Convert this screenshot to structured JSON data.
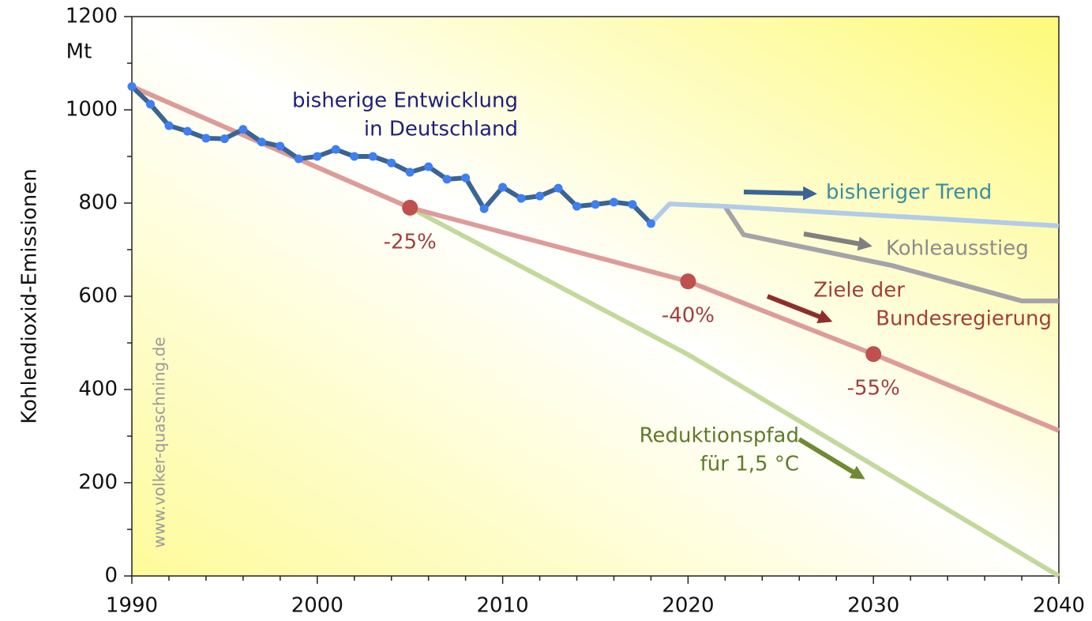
{
  "chart_data": {
    "type": "line",
    "ylabel": "Kohlendioxid-Emissionen",
    "yunit": "Mt",
    "watermark": "www.volker-quaschning.de",
    "xlim": [
      1990,
      2040
    ],
    "xticks": [
      1990,
      2000,
      2010,
      2020,
      2030,
      2040
    ],
    "xminorticks": [
      1992,
      1994,
      1996,
      1998,
      2002,
      2004,
      2006,
      2008,
      2012,
      2014,
      2016,
      2018,
      2022,
      2024,
      2026,
      2028,
      2032,
      2034,
      2036,
      2038
    ],
    "ylim": [
      0,
      1200
    ],
    "yticks": [
      0,
      200,
      400,
      600,
      800,
      1000,
      1200
    ],
    "yminorticks": [
      100,
      300,
      500,
      700,
      900,
      1100
    ],
    "series": [
      {
        "name": "Reduktionspfad für 1,5 °C",
        "color": "#c3d99b",
        "x": [
          1990,
          2005,
          2020,
          2040
        ],
        "values": [
          1050,
          790,
          475,
          0
        ]
      },
      {
        "name": "Ziele der Bundesregierung",
        "color": "#dc9c9a",
        "x": [
          1990,
          2005,
          2020,
          2030,
          2040
        ],
        "values": [
          1050,
          790,
          632,
          476,
          312
        ]
      },
      {
        "name": "Kohleausstieg",
        "color": "#a3a3a8",
        "x": [
          2022,
          2023,
          2031,
          2038,
          2040
        ],
        "values": [
          792,
          732,
          666,
          590,
          590
        ]
      },
      {
        "name": "bisheriger Trend",
        "color": "#b2cbe8",
        "x": [
          2018,
          2019,
          2022,
          2040
        ],
        "values": [
          756,
          798,
          793,
          751
        ]
      },
      {
        "name": "bisherige Entwicklung in Deutschland",
        "color": "#3a6494",
        "marker_color": "#3f7ff0",
        "x": [
          1990,
          1991,
          1992,
          1993,
          1994,
          1995,
          1996,
          1997,
          1998,
          1999,
          2000,
          2001,
          2002,
          2003,
          2004,
          2005,
          2006,
          2007,
          2008,
          2009,
          2010,
          2011,
          2012,
          2013,
          2014,
          2015,
          2016,
          2017,
          2018
        ],
        "values": [
          1050,
          1012,
          966,
          954,
          939,
          938,
          958,
          931,
          922,
          895,
          900,
          915,
          900,
          900,
          886,
          866,
          878,
          851,
          854,
          788,
          834,
          810,
          815,
          832,
          793,
          797,
          802,
          797,
          756
        ]
      }
    ],
    "targets": {
      "color": "#c0504d",
      "x": [
        2005,
        2020,
        2030
      ],
      "values": [
        790,
        632,
        476
      ],
      "labels": [
        "-25%",
        "-40%",
        "-55%"
      ]
    },
    "annotations": [
      {
        "lines": [
          "bisherige Entwicklung",
          "in Deutschland"
        ],
        "color": "#1f1f7a"
      },
      {
        "lines": [
          "bisheriger Trend"
        ],
        "color": "#3a8ea0"
      },
      {
        "lines": [
          "Kohleausstieg"
        ],
        "color": "#8c8c8c"
      },
      {
        "lines": [
          "Ziele der",
          "Bundesregierung"
        ],
        "color": "#a0403a"
      },
      {
        "lines": [
          "Reduktionspfad",
          "für 1,5 °C"
        ],
        "color": "#5f7a2a"
      }
    ]
  }
}
